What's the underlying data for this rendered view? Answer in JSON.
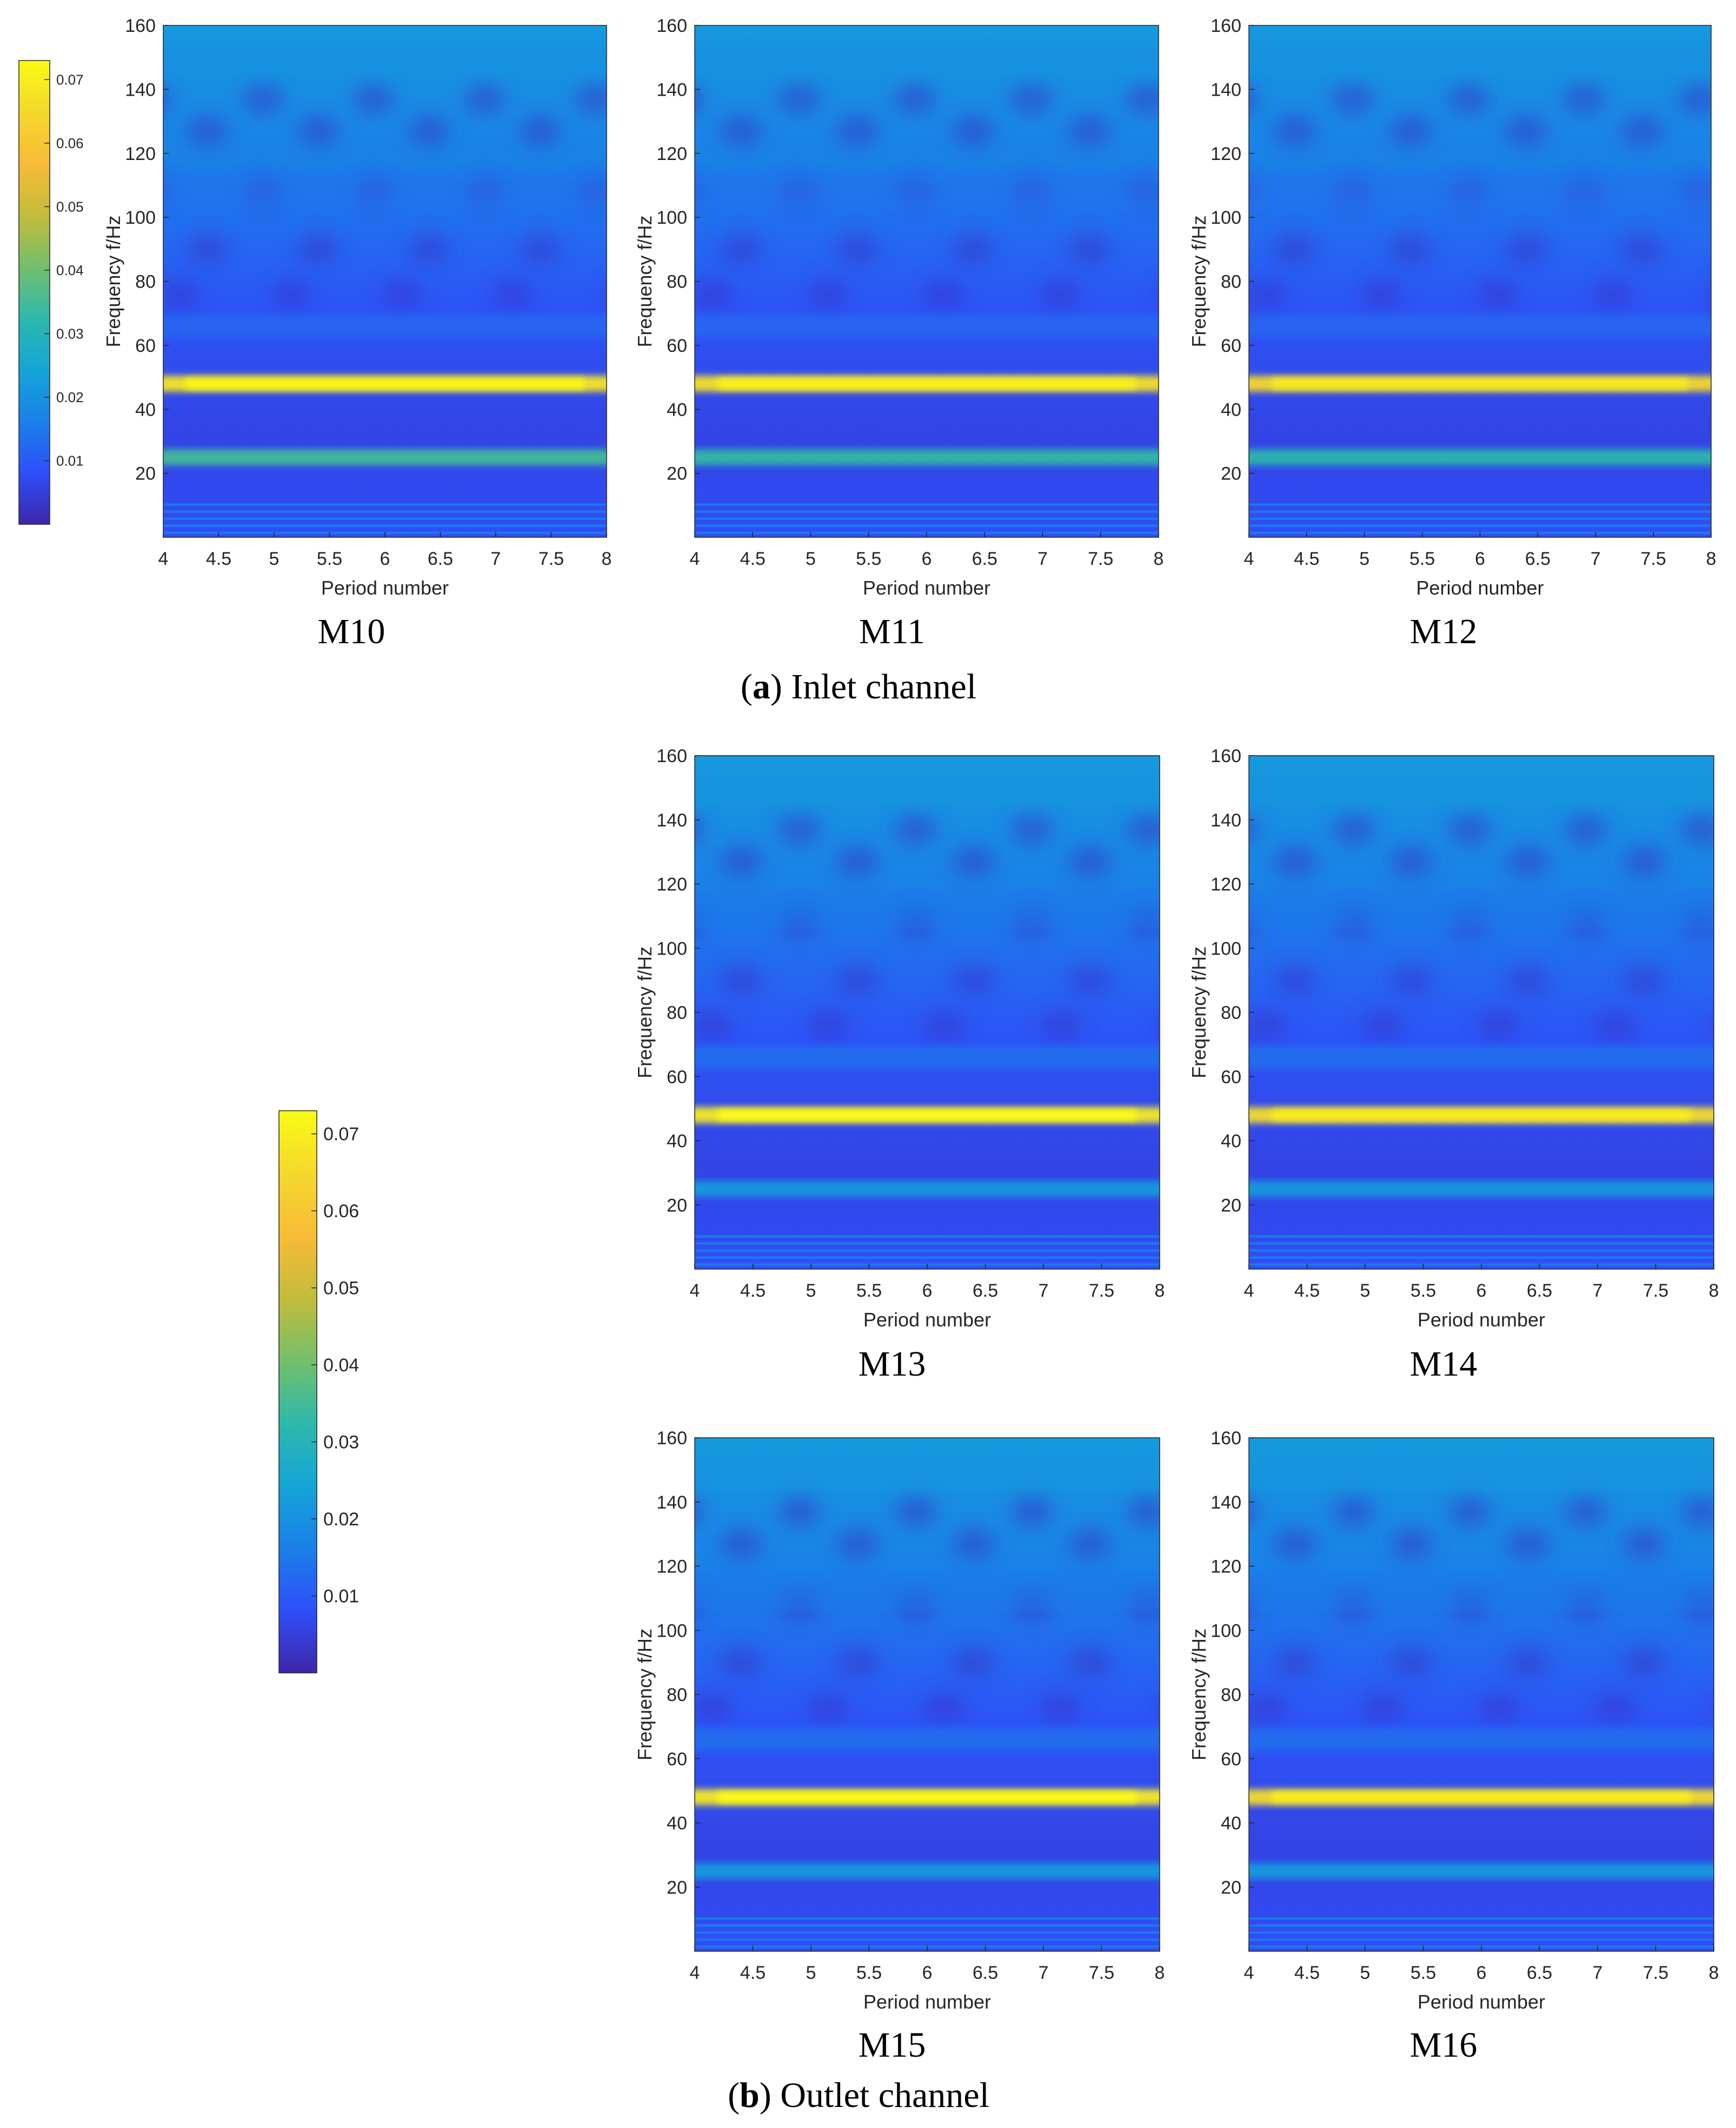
{
  "figure": {
    "section_a": {
      "letter": "a",
      "text": ") Inlet channel",
      "open": "("
    },
    "section_b": {
      "letter": "b",
      "text": ") Outlet channel",
      "open": "("
    }
  },
  "colors": {
    "colormap": [
      "#3e26a8",
      "#2f4ffa",
      "#1a80e8",
      "#14a5d8",
      "#2db9aa",
      "#74bf6b",
      "#c3bc3b",
      "#f8bb37",
      "#f5d82c",
      "#f9fb15"
    ],
    "background": "#1d49d6"
  },
  "chart_data": [
    {
      "type": "heatmap",
      "label": "M10",
      "section": "a",
      "xlabel": "Period number",
      "ylabel": "Frequency f/Hz",
      "xlim": [
        4,
        8
      ],
      "ylim": [
        0,
        160
      ],
      "xticks": [
        4,
        4.5,
        5,
        5.5,
        6,
        6.5,
        7,
        7.5,
        8
      ],
      "yticks": [
        20,
        40,
        60,
        80,
        100,
        120,
        140,
        160
      ],
      "bands": [
        {
          "freq": 48,
          "value": 0.068
        },
        {
          "freq": 25,
          "value": 0.035
        },
        {
          "freq": 66,
          "value": 0.012
        },
        {
          "freq": 108,
          "value": 0.014
        },
        {
          "freq": 150,
          "value": 0.02
        }
      ],
      "colorbar": {
        "min": 0,
        "max": 0.073,
        "ticks": [
          0.01,
          0.02,
          0.03,
          0.04,
          0.05,
          0.06,
          0.07
        ]
      }
    },
    {
      "type": "heatmap",
      "label": "M11",
      "section": "a",
      "xlabel": "Period number",
      "ylabel": "Frequency f/Hz",
      "xlim": [
        4,
        8
      ],
      "ylim": [
        0,
        160
      ],
      "xticks": [
        4,
        4.5,
        5,
        5.5,
        6,
        6.5,
        7,
        7.5,
        8
      ],
      "yticks": [
        20,
        40,
        60,
        80,
        100,
        120,
        140,
        160
      ],
      "bands": [
        {
          "freq": 48,
          "value": 0.067
        },
        {
          "freq": 25,
          "value": 0.033
        },
        {
          "freq": 66,
          "value": 0.012
        },
        {
          "freq": 108,
          "value": 0.014
        },
        {
          "freq": 150,
          "value": 0.02
        }
      ]
    },
    {
      "type": "heatmap",
      "label": "M12",
      "section": "a",
      "xlabel": "Period number",
      "ylabel": "Frequency f/Hz",
      "xlim": [
        4,
        8
      ],
      "ylim": [
        0,
        160
      ],
      "xticks": [
        4,
        4.5,
        5,
        5.5,
        6,
        6.5,
        7,
        7.5,
        8
      ],
      "yticks": [
        20,
        40,
        60,
        80,
        100,
        120,
        140,
        160
      ],
      "bands": [
        {
          "freq": 48,
          "value": 0.065
        },
        {
          "freq": 25,
          "value": 0.032
        },
        {
          "freq": 66,
          "value": 0.012
        },
        {
          "freq": 108,
          "value": 0.014
        },
        {
          "freq": 150,
          "value": 0.02
        }
      ]
    },
    {
      "type": "heatmap",
      "label": "M13",
      "section": "b",
      "xlabel": "Period number",
      "ylabel": "Frequency f/Hz",
      "xlim": [
        4,
        8
      ],
      "ylim": [
        0,
        160
      ],
      "xticks": [
        4,
        4.5,
        5,
        5.5,
        6,
        6.5,
        7,
        7.5,
        8
      ],
      "yticks": [
        20,
        40,
        60,
        80,
        100,
        120,
        140,
        160
      ],
      "bands": [
        {
          "freq": 48,
          "value": 0.069
        },
        {
          "freq": 25,
          "value": 0.022
        },
        {
          "freq": 66,
          "value": 0.013
        },
        {
          "freq": 112,
          "value": 0.015
        },
        {
          "freq": 150,
          "value": 0.021
        }
      ],
      "colorbar": {
        "min": 0,
        "max": 0.073,
        "ticks": [
          0.01,
          0.02,
          0.03,
          0.04,
          0.05,
          0.06,
          0.07
        ]
      }
    },
    {
      "type": "heatmap",
      "label": "M14",
      "section": "b",
      "xlabel": "Period number",
      "ylabel": "Frequency f/Hz",
      "xlim": [
        4,
        8
      ],
      "ylim": [
        0,
        160
      ],
      "xticks": [
        4,
        4.5,
        5,
        5.5,
        6,
        6.5,
        7,
        7.5,
        8
      ],
      "yticks": [
        20,
        40,
        60,
        80,
        100,
        120,
        140,
        160
      ],
      "bands": [
        {
          "freq": 48,
          "value": 0.066
        },
        {
          "freq": 25,
          "value": 0.022
        },
        {
          "freq": 66,
          "value": 0.013
        },
        {
          "freq": 112,
          "value": 0.015
        },
        {
          "freq": 150,
          "value": 0.021
        }
      ]
    },
    {
      "type": "heatmap",
      "label": "M15",
      "section": "b",
      "xlabel": "Period number",
      "ylabel": "Frequency f/Hz",
      "xlim": [
        4,
        8
      ],
      "ylim": [
        0,
        160
      ],
      "xticks": [
        4,
        4.5,
        5,
        5.5,
        6,
        6.5,
        7,
        7.5,
        8
      ],
      "yticks": [
        20,
        40,
        60,
        80,
        100,
        120,
        140,
        160
      ],
      "bands": [
        {
          "freq": 48,
          "value": 0.069
        },
        {
          "freq": 25,
          "value": 0.022
        },
        {
          "freq": 66,
          "value": 0.013
        },
        {
          "freq": 112,
          "value": 0.015
        },
        {
          "freq": 150,
          "value": 0.021
        }
      ]
    },
    {
      "type": "heatmap",
      "label": "M16",
      "section": "b",
      "xlabel": "Period number",
      "ylabel": "Frequency f/Hz",
      "xlim": [
        4,
        8
      ],
      "ylim": [
        0,
        160
      ],
      "xticks": [
        4,
        4.5,
        5,
        5.5,
        6,
        6.5,
        7,
        7.5,
        8
      ],
      "yticks": [
        20,
        40,
        60,
        80,
        100,
        120,
        140,
        160
      ],
      "bands": [
        {
          "freq": 48,
          "value": 0.066
        },
        {
          "freq": 25,
          "value": 0.022
        },
        {
          "freq": 66,
          "value": 0.013
        },
        {
          "freq": 112,
          "value": 0.015
        },
        {
          "freq": 150,
          "value": 0.021
        }
      ]
    }
  ]
}
